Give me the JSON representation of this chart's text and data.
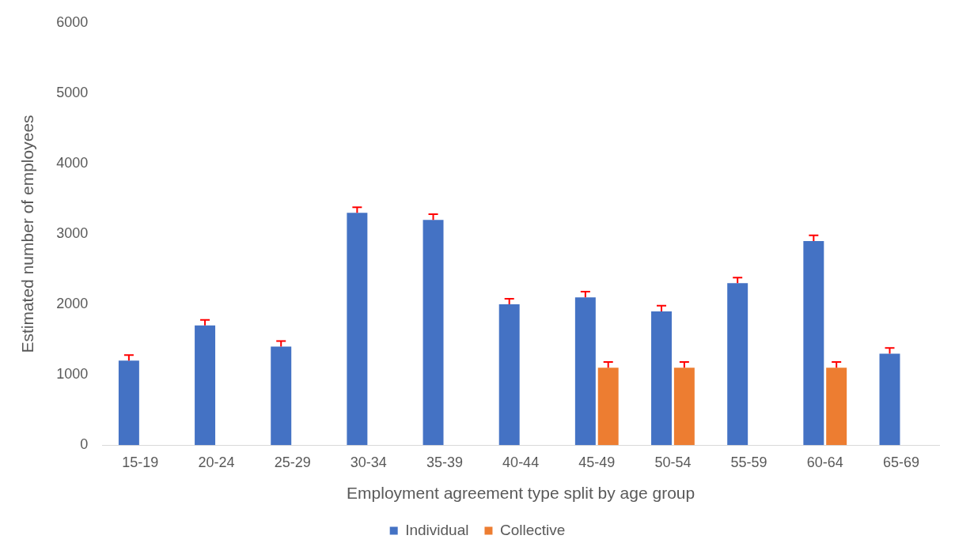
{
  "chart_data": {
    "type": "bar",
    "xlabel": "Employment agreement type split by age group",
    "ylabel": "Estimated number of employees",
    "categories": [
      "15-19",
      "20-24",
      "25-29",
      "30-34",
      "35-39",
      "40-44",
      "45-49",
      "50-54",
      "55-59",
      "60-64",
      "65-69"
    ],
    "series": [
      {
        "name": "Individual",
        "color": "#4472c4",
        "values": [
          1200,
          1700,
          1400,
          3300,
          3200,
          2000,
          2100,
          1900,
          2300,
          2900,
          1300
        ],
        "errors": [
          [
            1200,
            1280
          ],
          [
            1700,
            1780
          ],
          [
            1400,
            1480
          ],
          [
            3300,
            3380
          ],
          [
            3200,
            3280
          ],
          [
            2000,
            2080
          ],
          [
            2100,
            2180
          ],
          [
            1900,
            1980
          ],
          [
            2300,
            2380
          ],
          [
            2900,
            2980
          ],
          [
            1300,
            1380
          ]
        ]
      },
      {
        "name": "Collective",
        "color": "#ed7d31",
        "values": [
          null,
          null,
          null,
          null,
          null,
          null,
          1100,
          1100,
          null,
          1100,
          null
        ],
        "errors": [
          null,
          null,
          null,
          null,
          null,
          null,
          [
            1100,
            1180
          ],
          [
            1100,
            1180
          ],
          null,
          [
            1100,
            1180
          ],
          null
        ]
      }
    ],
    "ylim": [
      0,
      6000
    ],
    "yticks": [
      0,
      1000,
      2000,
      3000,
      4000,
      5000,
      6000
    ],
    "grid": false,
    "legend": "bottom"
  }
}
